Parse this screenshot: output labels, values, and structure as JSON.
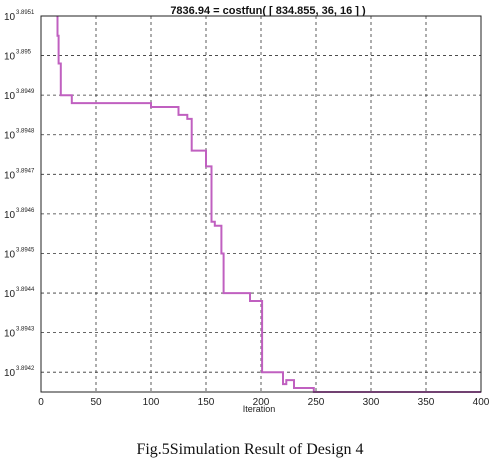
{
  "caption": "Fig.5Simulation Result of Design 4",
  "chart_data": {
    "type": "line",
    "title": "7836.94 = costfun( [   834.855,        36,         16 ] )",
    "xlabel": "Iteration",
    "ylabel": "",
    "xlim": [
      0,
      400
    ],
    "ylim": [
      3.89415,
      3.8951
    ],
    "y_scale": "log",
    "grid": true,
    "x_ticks": [
      "0",
      "50",
      "100",
      "150",
      "200",
      "250",
      "300",
      "350",
      "400"
    ],
    "y_ticks": [
      {
        "value": 3.8951,
        "base": "10",
        "exp": "3.8951"
      },
      {
        "value": 3.895,
        "base": "10",
        "exp": "3.895"
      },
      {
        "value": 3.8949,
        "base": "10",
        "exp": "3.8949"
      },
      {
        "value": 3.8948,
        "base": "10",
        "exp": "3.8948"
      },
      {
        "value": 3.8947,
        "base": "10",
        "exp": "3.8947"
      },
      {
        "value": 3.8946,
        "base": "10",
        "exp": "3.8946"
      },
      {
        "value": 3.8945,
        "base": "10",
        "exp": "3.8945"
      },
      {
        "value": 3.8944,
        "base": "10",
        "exp": "3.8944"
      },
      {
        "value": 3.8943,
        "base": "10",
        "exp": "3.8943"
      },
      {
        "value": 3.8942,
        "base": "10",
        "exp": "3.8942"
      }
    ],
    "series": [
      {
        "color": "#c060c0",
        "x": [
          15,
          15,
          16,
          16,
          18,
          18,
          20,
          20,
          28,
          28,
          45,
          45,
          80,
          80,
          100,
          100,
          125,
          125,
          133,
          133,
          137,
          137,
          150,
          150,
          155,
          155,
          158,
          158,
          164,
          164,
          166,
          166,
          190,
          190,
          197,
          197,
          201,
          201,
          220,
          220,
          223,
          223,
          230,
          230,
          248,
          248,
          400
        ],
        "y": [
          3.89512,
          3.89505,
          3.89505,
          3.89498,
          3.89498,
          3.8949,
          3.8949,
          3.8949,
          3.8949,
          3.89488,
          3.89488,
          3.89488,
          3.89488,
          3.89488,
          3.89488,
          3.89487,
          3.89487,
          3.89485,
          3.89485,
          3.89484,
          3.89484,
          3.89476,
          3.89476,
          3.89472,
          3.89472,
          3.89458,
          3.89458,
          3.89457,
          3.89457,
          3.8945,
          3.8945,
          3.8944,
          3.8944,
          3.89438,
          3.89438,
          3.89438,
          3.89438,
          3.8942,
          3.8942,
          3.89417,
          3.89417,
          3.89418,
          3.89418,
          3.89416,
          3.89416,
          3.89415,
          3.89415
        ]
      }
    ]
  }
}
